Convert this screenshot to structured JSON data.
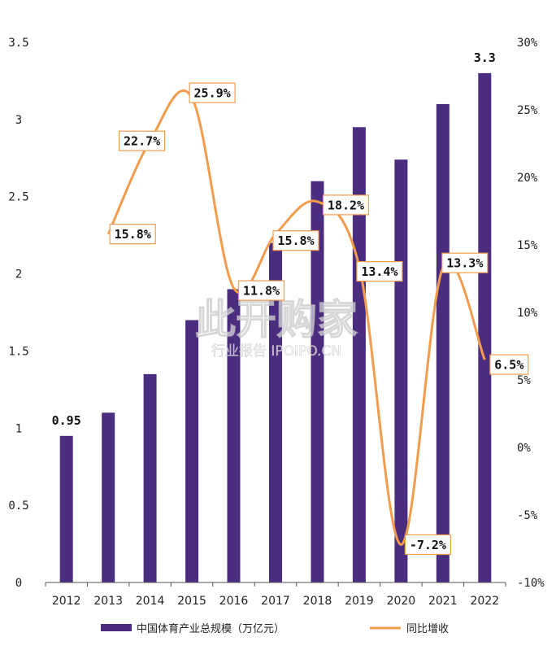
{
  "chart_data": {
    "type": "bar+line",
    "categories": [
      "2012",
      "2013",
      "2014",
      "2015",
      "2016",
      "2017",
      "2018",
      "2019",
      "2020",
      "2021",
      "2022"
    ],
    "bar_series": {
      "name": "中国体育产业总规模（万亿元）",
      "values": [
        0.95,
        1.1,
        1.35,
        1.7,
        1.9,
        2.2,
        2.6,
        2.95,
        2.74,
        3.1,
        3.3
      ],
      "color": "#4B2D7F",
      "labels": {
        "2012": "0.95",
        "2022": "3.3"
      }
    },
    "line_series": {
      "name": "同比增收",
      "values": [
        null,
        15.8,
        22.7,
        25.9,
        11.8,
        15.8,
        18.2,
        13.4,
        -7.2,
        13.3,
        6.5
      ],
      "labels": [
        "",
        "15.8%",
        "22.7%",
        "25.9%",
        "11.8%",
        "15.8%",
        "18.2%",
        "13.4%",
        "-7.2%",
        "13.3%",
        "6.5%"
      ],
      "color": "#F39C4D"
    },
    "y_left": {
      "ticks": [
        "0",
        "0.5",
        "1",
        "1.5",
        "2",
        "2.5",
        "3",
        "3.5"
      ],
      "lim": [
        0,
        3.5
      ]
    },
    "y_right": {
      "ticks": [
        "-10%",
        "-5%",
        "0%",
        "5%",
        "10%",
        "15%",
        "20%",
        "25%",
        "30%"
      ],
      "lim": [
        -10,
        30
      ]
    },
    "legend_position": "bottom",
    "grid": false
  },
  "watermark": {
    "main": "此开购家",
    "sub": "行业报告 IPOIPO.CN"
  }
}
